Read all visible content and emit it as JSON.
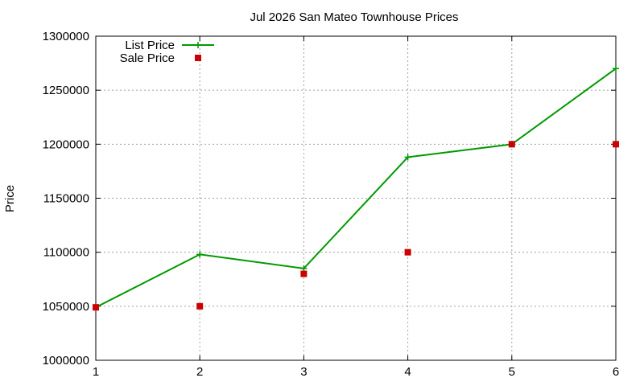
{
  "chart_data": {
    "type": "line",
    "title": "Jul 2026 San Mateo Townhouse Prices",
    "xlabel": "",
    "ylabel": "Price",
    "x": [
      1,
      2,
      3,
      4,
      5,
      6
    ],
    "xlim": [
      1,
      6
    ],
    "ylim": [
      1000000,
      1300000
    ],
    "x_ticks": [
      "1",
      "2",
      "3",
      "4",
      "5",
      "6"
    ],
    "y_ticks": [
      "1000000",
      "1050000",
      "1100000",
      "1150000",
      "1200000",
      "1250000",
      "1300000"
    ],
    "grid": true,
    "legend_position": "top-left",
    "series": [
      {
        "name": "List Price",
        "style": "line-with-plus-markers",
        "color": "#009900",
        "values": [
          1049000,
          1098000,
          1085000,
          1188000,
          1200000,
          1270000
        ]
      },
      {
        "name": "Sale Price",
        "style": "square-markers",
        "color": "#cc0000",
        "values": [
          1049000,
          1050000,
          1080000,
          1100000,
          1200000,
          1200000
        ]
      }
    ]
  }
}
